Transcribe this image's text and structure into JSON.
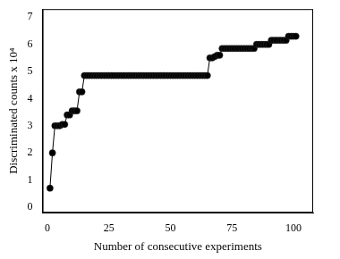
{
  "chart_data": {
    "type": "line",
    "x_label": "Number of consecutive experiments",
    "y_label": "Discriminated counts x 10⁴",
    "x": [
      1,
      2,
      3,
      4,
      5,
      6,
      7,
      8,
      9,
      10,
      11,
      12,
      13,
      14,
      15,
      16,
      17,
      18,
      19,
      20,
      21,
      22,
      23,
      24,
      25,
      26,
      27,
      28,
      29,
      30,
      31,
      32,
      33,
      34,
      35,
      36,
      37,
      38,
      39,
      40,
      41,
      42,
      43,
      44,
      45,
      46,
      47,
      48,
      49,
      50,
      51,
      52,
      53,
      54,
      55,
      56,
      57,
      58,
      59,
      60,
      61,
      62,
      63,
      64,
      65,
      66,
      67,
      68,
      69,
      70,
      71,
      72,
      73,
      74,
      75,
      76,
      77,
      78,
      79,
      80,
      81,
      82,
      83,
      84,
      85,
      86,
      87,
      88,
      89,
      90,
      91,
      92,
      93,
      94,
      95,
      96,
      97,
      98,
      99,
      100,
      101
    ],
    "values": [
      0.7,
      2.0,
      3.0,
      3.0,
      3.0,
      3.05,
      3.05,
      3.4,
      3.4,
      3.55,
      3.55,
      3.55,
      4.25,
      4.25,
      4.85,
      4.85,
      4.85,
      4.85,
      4.85,
      4.85,
      4.85,
      4.85,
      4.85,
      4.85,
      4.85,
      4.85,
      4.85,
      4.85,
      4.85,
      4.85,
      4.85,
      4.85,
      4.85,
      4.85,
      4.85,
      4.85,
      4.85,
      4.85,
      4.85,
      4.85,
      4.85,
      4.85,
      4.85,
      4.85,
      4.85,
      4.85,
      4.85,
      4.85,
      4.85,
      4.85,
      4.85,
      4.85,
      4.85,
      4.85,
      4.85,
      4.85,
      4.85,
      4.85,
      4.85,
      4.85,
      4.85,
      4.85,
      4.85,
      4.85,
      4.85,
      5.5,
      5.5,
      5.55,
      5.6,
      5.6,
      5.85,
      5.85,
      5.85,
      5.85,
      5.85,
      5.85,
      5.85,
      5.85,
      5.85,
      5.85,
      5.85,
      5.85,
      5.85,
      5.85,
      6.0,
      6.0,
      6.0,
      6.0,
      6.0,
      6.0,
      6.15,
      6.15,
      6.15,
      6.15,
      6.15,
      6.15,
      6.15,
      6.3,
      6.3,
      6.3,
      6.3
    ],
    "color": "#000000",
    "marker": "circle",
    "line_style": "solid",
    "xlim": [
      -2,
      108
    ],
    "xticks": [
      0,
      25,
      50,
      75,
      100
    ],
    "ylim": [
      -0.2,
      7.3
    ],
    "yticks": [
      0,
      1,
      2,
      3,
      4,
      5,
      6,
      7
    ],
    "grid": false
  }
}
